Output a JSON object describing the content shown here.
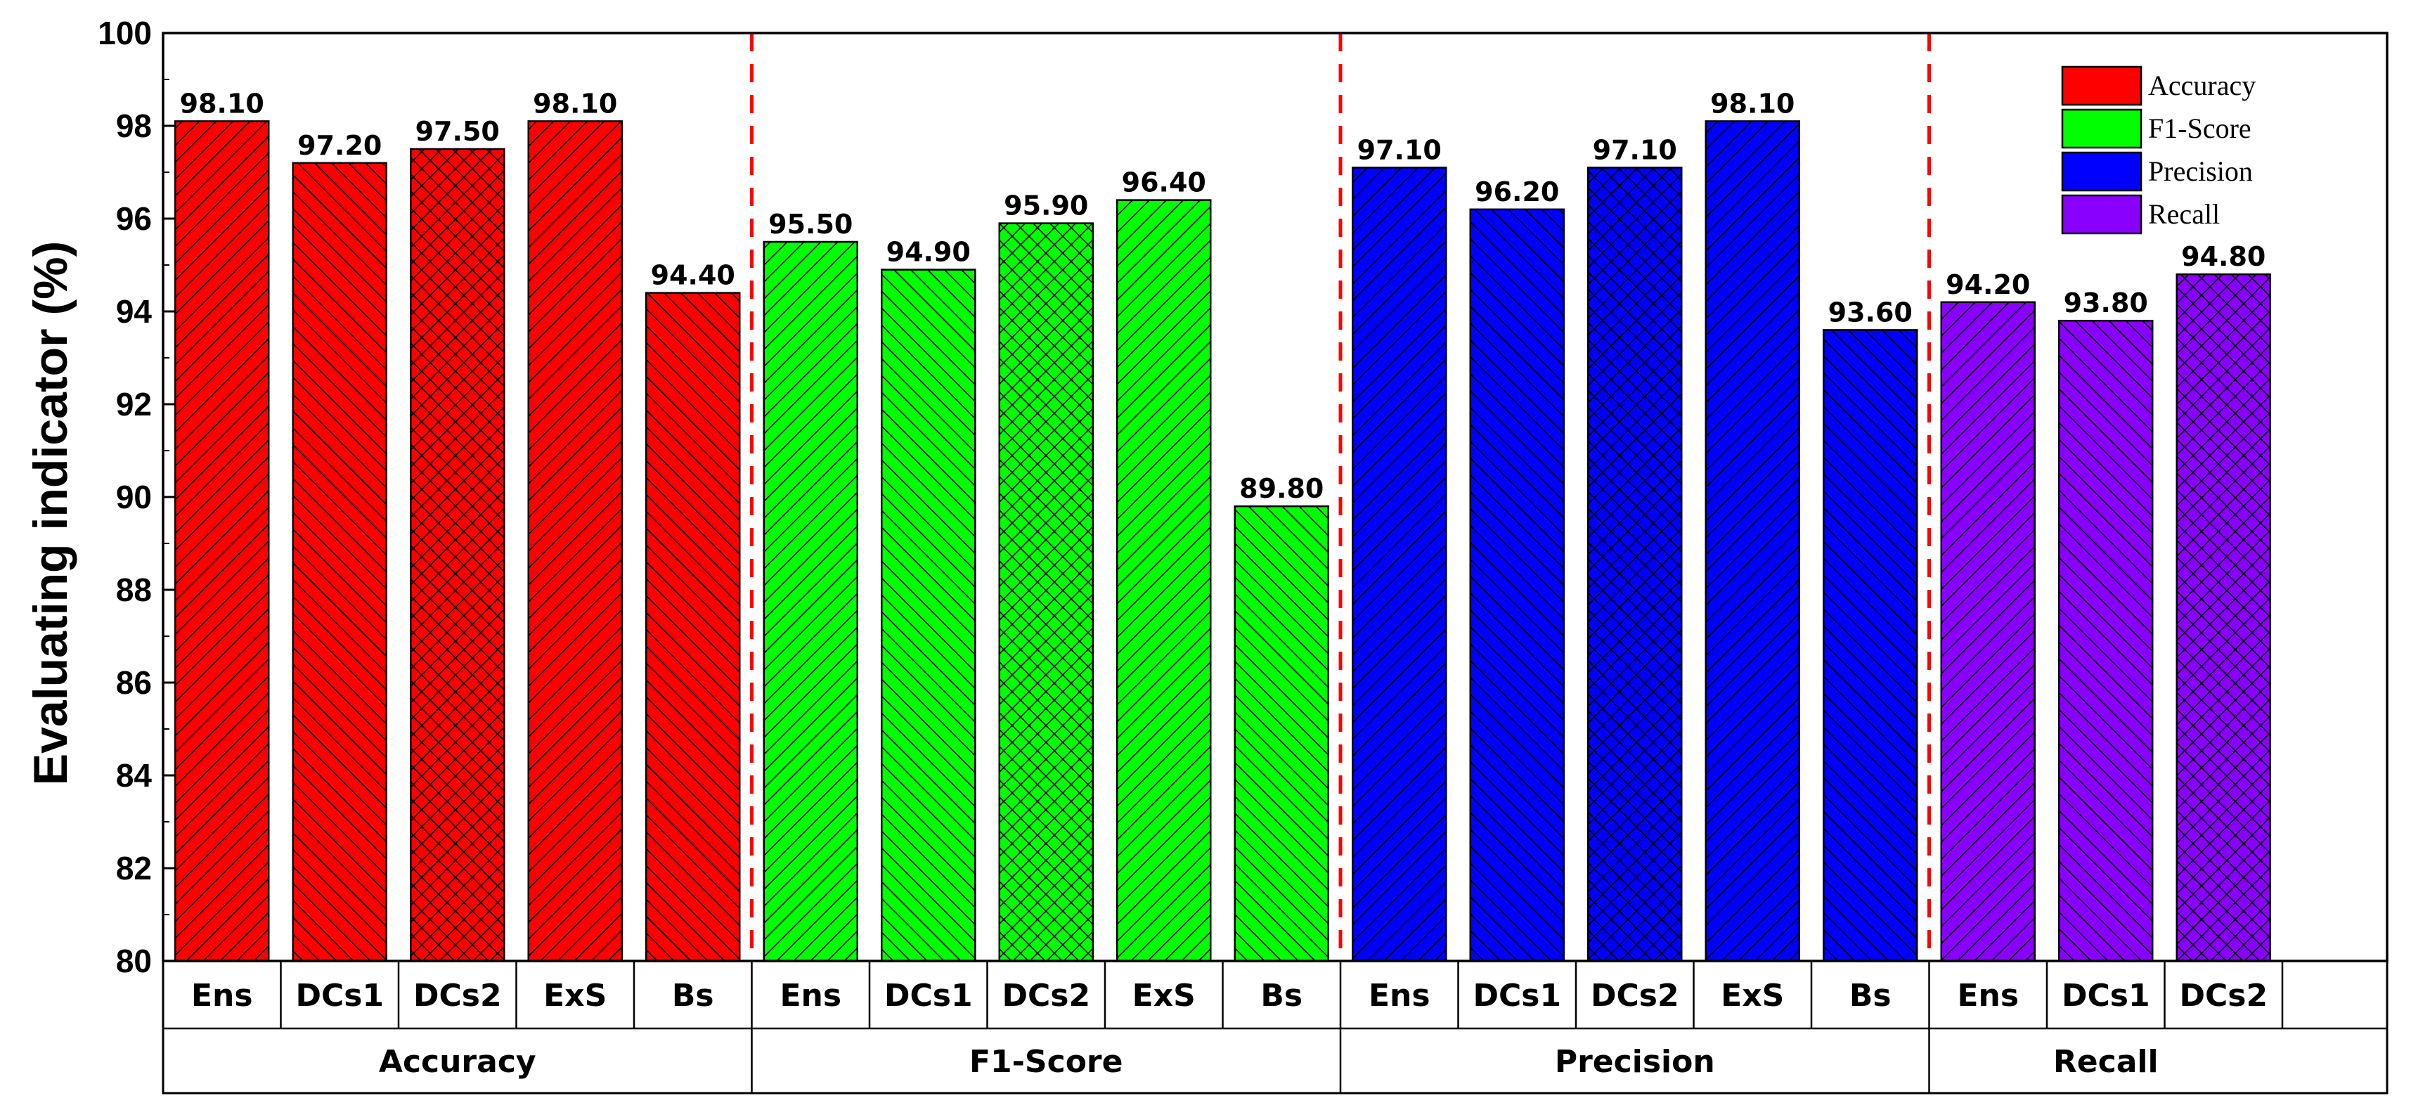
{
  "chart_data": {
    "type": "bar",
    "ylabel": "Evaluating indicator (%)",
    "xlabel": "",
    "ylim": [
      80,
      100
    ],
    "yticks": [
      "80",
      "82",
      "84",
      "86",
      "88",
      "90",
      "92",
      "94",
      "96",
      "98",
      "100"
    ],
    "grid": false,
    "legend_position": "top-right",
    "groups": [
      {
        "name": "Accuracy",
        "color": "#ff0000",
        "categories": [
          "Ens",
          "DCs1",
          "DCs2",
          "ExS",
          "Bs"
        ],
        "values": [
          98.1,
          97.2,
          97.5,
          98.1,
          94.4
        ],
        "labels": [
          "98.10",
          "97.20",
          "97.50",
          "98.10",
          "94.40"
        ],
        "patterns": [
          "fwd",
          "bwd",
          "cross",
          "fwd",
          "bwd"
        ]
      },
      {
        "name": "F1-Score",
        "color": "#00ff00",
        "categories": [
          "Ens",
          "DCs1",
          "DCs2",
          "ExS",
          "Bs"
        ],
        "values": [
          95.5,
          94.9,
          95.9,
          96.4,
          89.8
        ],
        "labels": [
          "95.50",
          "94.90",
          "95.90",
          "96.40",
          "89.80"
        ],
        "patterns": [
          "fwd",
          "bwd",
          "cross",
          "fwd",
          "bwd"
        ]
      },
      {
        "name": "Precision",
        "color": "#0000ff",
        "categories": [
          "Ens",
          "DCs1",
          "DCs2",
          "ExS",
          "Bs"
        ],
        "values": [
          97.1,
          96.2,
          97.1,
          98.1,
          93.6
        ],
        "labels": [
          "97.10",
          "96.20",
          "97.10",
          "98.10",
          "93.60"
        ],
        "patterns": [
          "fwd",
          "bwd",
          "cross",
          "fwd",
          "bwd"
        ]
      },
      {
        "name": "Recall",
        "color": "#8a00ff",
        "categories": [
          "Ens",
          "DCs1",
          "DCs2"
        ],
        "values": [
          94.2,
          93.8,
          94.8
        ],
        "labels": [
          "94.20",
          "93.80",
          "94.80"
        ],
        "patterns": [
          "fwd",
          "bwd",
          "cross"
        ]
      }
    ],
    "legend": [
      "Accuracy",
      "F1-Score",
      "Precision",
      "Recall"
    ]
  }
}
